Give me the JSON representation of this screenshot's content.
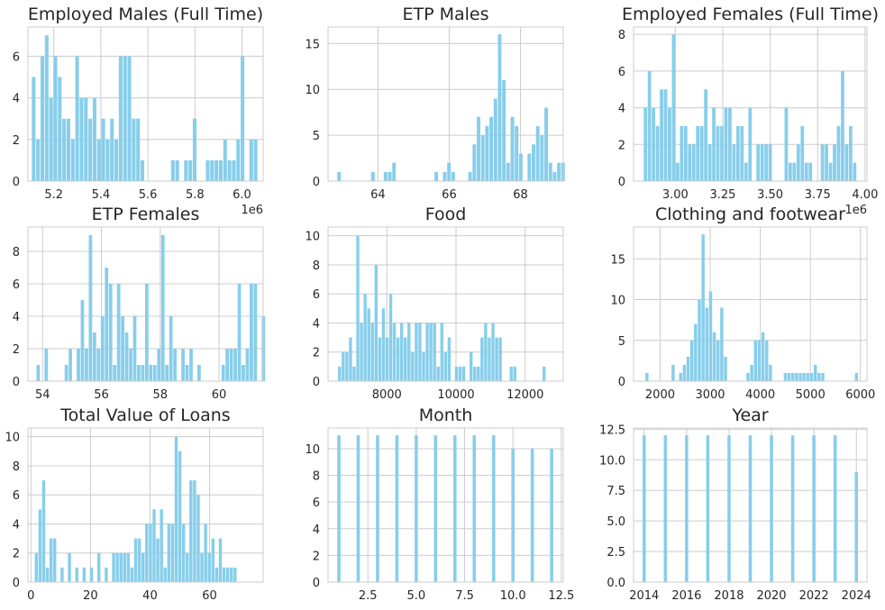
{
  "chart_data": [
    {
      "type": "bar",
      "title": "Employed Males (Full Time)",
      "xlim": [
        5.09,
        6.09
      ],
      "ylim": [
        0,
        7.4
      ],
      "xticks": [
        5.2,
        5.4,
        5.6,
        5.8,
        6.0
      ],
      "xtick_labels": [
        "5.2",
        "5.4",
        "5.6",
        "5.8",
        "6.0"
      ],
      "yticks": [
        0,
        2,
        4,
        6
      ],
      "ytick_labels": [
        "0",
        "2",
        "4",
        "6"
      ],
      "offset_text": "1e6",
      "bin_start": 5.105,
      "bin_width": 0.0185,
      "values": [
        5,
        2,
        6,
        7,
        4,
        6,
        5,
        3,
        3,
        2,
        6,
        4,
        4,
        3,
        4,
        2,
        3,
        2,
        3,
        2,
        6,
        6,
        6,
        3,
        3,
        1,
        0,
        0,
        0,
        0,
        0,
        0,
        1,
        1,
        0,
        1,
        1,
        3,
        0,
        0,
        1,
        1,
        1,
        1,
        2,
        1,
        1,
        2,
        6,
        0,
        2,
        2
      ]
    },
    {
      "type": "bar",
      "title": "ETP Males",
      "xlim": [
        62.6,
        69.2
      ],
      "ylim": [
        0,
        16.8
      ],
      "xticks": [
        64,
        66,
        68
      ],
      "xtick_labels": [
        "64",
        "66",
        "68"
      ],
      "yticks": [
        0,
        5,
        10,
        15
      ],
      "ytick_labels": [
        "0",
        "5",
        "10",
        "15"
      ],
      "offset_text": "",
      "bin_start": 62.85,
      "bin_width": 0.1186,
      "values": [
        1,
        0,
        0,
        0,
        0,
        0,
        0,
        0,
        1,
        0,
        0,
        1,
        1,
        2,
        0,
        0,
        0,
        0,
        0,
        0,
        0,
        0,
        0,
        1,
        0,
        1,
        2,
        1,
        0,
        0,
        0,
        1,
        4,
        7,
        5,
        6,
        7,
        9,
        16,
        11,
        2,
        7,
        6,
        3,
        0,
        3,
        4,
        6,
        5,
        8,
        2,
        1,
        2,
        2
      ]
    },
    {
      "type": "bar",
      "title": "Employed Females (Full Time)",
      "xlim": [
        2.78,
        4.01
      ],
      "ylim": [
        0,
        8.4
      ],
      "xticks": [
        3.0,
        3.25,
        3.5,
        3.75,
        4.0
      ],
      "xtick_labels": [
        "3.00",
        "3.25",
        "3.50",
        "3.75",
        "4.00"
      ],
      "yticks": [
        0,
        2,
        4,
        6,
        8
      ],
      "ytick_labels": [
        "0",
        "2",
        "4",
        "6",
        "8"
      ],
      "offset_text": "1e6",
      "bin_start": 2.832,
      "bin_width": 0.0212,
      "values": [
        4,
        6,
        4,
        3,
        5,
        5,
        4,
        8,
        1,
        3,
        3,
        2,
        2,
        3,
        3,
        5,
        2,
        4,
        3,
        3,
        4,
        4,
        2,
        3,
        3,
        1,
        4,
        0,
        2,
        2,
        2,
        2,
        0,
        0,
        0,
        4,
        1,
        1,
        2,
        3,
        1,
        1,
        0,
        0,
        2,
        2,
        1,
        2,
        3,
        6,
        2,
        3,
        1
      ]
    },
    {
      "type": "bar",
      "title": "ETP Females",
      "xlim": [
        53.5,
        61.5
      ],
      "ylim": [
        0,
        9.5
      ],
      "xticks": [
        54,
        56,
        58,
        60
      ],
      "xtick_labels": [
        "54",
        "56",
        "58",
        "60"
      ],
      "yticks": [
        0,
        2,
        4,
        6,
        8
      ],
      "ytick_labels": [
        "0",
        "2",
        "4",
        "6",
        "8"
      ],
      "offset_text": "",
      "bin_start": 53.78,
      "bin_width": 0.1368,
      "values": [
        1,
        0,
        2,
        0,
        0,
        0,
        0,
        1,
        2,
        0,
        2,
        5,
        2,
        9,
        3,
        2,
        4,
        7,
        6,
        1,
        6,
        4,
        3,
        2,
        4,
        1,
        1,
        6,
        1,
        1,
        2,
        9,
        1,
        4,
        2,
        0,
        2,
        1,
        2,
        0,
        1,
        0,
        0,
        0,
        0,
        0,
        1,
        2,
        2,
        2,
        6,
        1,
        2,
        6,
        6,
        0,
        4
      ]
    },
    {
      "type": "bar",
      "title": "Food",
      "xlim": [
        6300,
        13100
      ],
      "ylim": [
        0,
        10.6
      ],
      "xticks": [
        8000,
        10000,
        12000
      ],
      "xtick_labels": [
        "8000",
        "10000",
        "12000"
      ],
      "yticks": [
        0,
        2,
        4,
        6,
        8,
        10
      ],
      "ytick_labels": [
        "0",
        "2",
        "4",
        "6",
        "8",
        "10"
      ],
      "offset_text": "",
      "bin_start": 6580,
      "bin_width": 105.6,
      "values": [
        1,
        2,
        2,
        3,
        1,
        10,
        4,
        6,
        5,
        4,
        8,
        3,
        5,
        3,
        6,
        4,
        3,
        4,
        3,
        4,
        2,
        4,
        4,
        2,
        4,
        4,
        4,
        1,
        4,
        2,
        3,
        0,
        1,
        1,
        1,
        0,
        2,
        1,
        1,
        3,
        4,
        3,
        4,
        3,
        3,
        0,
        0,
        1,
        1,
        0,
        0,
        0,
        0,
        0,
        0,
        0,
        1
      ]
    },
    {
      "type": "bar",
      "title": "Clothing and footwear",
      "xlim": [
        1470,
        6130
      ],
      "ylim": [
        0,
        18.9
      ],
      "xticks": [
        2000,
        3000,
        4000,
        5000,
        6000
      ],
      "xtick_labels": [
        "2000",
        "3000",
        "4000",
        "5000",
        "6000"
      ],
      "yticks": [
        0,
        5,
        10,
        15
      ],
      "ytick_labels": [
        "0",
        "5",
        "10",
        "15"
      ],
      "offset_text": "",
      "bin_start": 1700,
      "bin_width": 74.7,
      "values": [
        1,
        0,
        0,
        0,
        0,
        0,
        0,
        2,
        0,
        1,
        2,
        3,
        5,
        7,
        10,
        18,
        9,
        11,
        6,
        5,
        9,
        3,
        0,
        0,
        0,
        0,
        0,
        1,
        2,
        5,
        5,
        6,
        5,
        2,
        0,
        0,
        0,
        1,
        1,
        1,
        1,
        1,
        1,
        1,
        1,
        2,
        1,
        1,
        0,
        0,
        0,
        0,
        0,
        0,
        0,
        0,
        1
      ]
    },
    {
      "type": "bar",
      "title": "Total Value of Loans",
      "xlim": [
        -1,
        78
      ],
      "ylim": [
        0,
        10.6
      ],
      "xticks": [
        0,
        20,
        40,
        60
      ],
      "xtick_labels": [
        "0",
        "20",
        "40",
        "60"
      ],
      "yticks": [
        0,
        2,
        4,
        6,
        8,
        10
      ],
      "ytick_labels": [
        "0",
        "2",
        "4",
        "6",
        "8",
        "10"
      ],
      "offset_text": "",
      "bin_start": 1.2,
      "bin_width": 1.236,
      "values": [
        2,
        5,
        7,
        1,
        3,
        3,
        0,
        1,
        0,
        2,
        0,
        1,
        0,
        1,
        0,
        1,
        0,
        2,
        0,
        1,
        0,
        2,
        2,
        2,
        2,
        2,
        1,
        3,
        3,
        2,
        4,
        4,
        5,
        3,
        5,
        1,
        4,
        4,
        10,
        9,
        4,
        2,
        7,
        7,
        6,
        2,
        4,
        2,
        3,
        1,
        3,
        1,
        1,
        1,
        1
      ]
    },
    {
      "type": "bar",
      "title": "Month",
      "xlim": [
        0.44,
        12.6
      ],
      "ylim": [
        0,
        11.55
      ],
      "xticks": [
        2.5,
        5.0,
        7.5,
        10.0,
        12.5
      ],
      "xtick_labels": [
        "2.5",
        "5.0",
        "7.5",
        "10.0",
        "12.5"
      ],
      "yticks": [
        0,
        2,
        4,
        6,
        8,
        10
      ],
      "ytick_labels": [
        "0",
        "2",
        "4",
        "6",
        "8",
        "10"
      ],
      "offset_text": "",
      "bin_start": 0.94,
      "bin_width": 0.2,
      "bar_x": [
        1,
        2,
        3,
        4,
        5,
        6,
        7,
        8,
        9,
        10,
        11,
        12
      ],
      "values": [
        11,
        11,
        11,
        11,
        11,
        11,
        11,
        11,
        11,
        10,
        10,
        10
      ]
    },
    {
      "type": "bar",
      "title": "Year",
      "xlim": [
        2013.5,
        2024.5
      ],
      "ylim": [
        0,
        12.6
      ],
      "xticks": [
        2014,
        2016,
        2018,
        2020,
        2022,
        2024
      ],
      "xtick_labels": [
        "2014",
        "2016",
        "2018",
        "2020",
        "2022",
        "2024"
      ],
      "yticks": [
        0,
        2.5,
        5.0,
        7.5,
        10.0,
        12.5
      ],
      "ytick_labels": [
        "0.0",
        "2.5",
        "5.0",
        "7.5",
        "10.0",
        "12.5"
      ],
      "offset_text": "",
      "bin_start": 2013.92,
      "bin_width": 0.18,
      "bar_x": [
        2014,
        2015,
        2016,
        2017,
        2018,
        2019,
        2020,
        2021,
        2022,
        2023,
        2024
      ],
      "values": [
        12,
        12,
        12,
        12,
        12,
        12,
        12,
        12,
        12,
        12,
        9
      ]
    }
  ]
}
